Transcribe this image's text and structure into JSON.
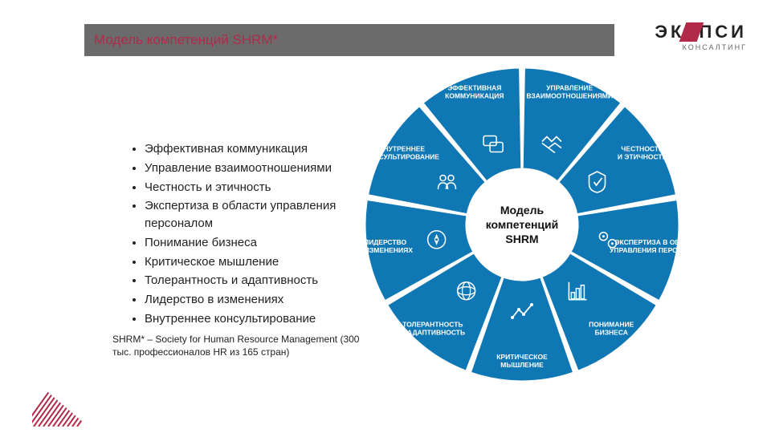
{
  "title": "Модель компетенций SHRM*",
  "logo": {
    "line1_a": "ЭК",
    "line1_b": "ПСИ",
    "sub": "КОНСАЛТИНГ"
  },
  "bullets": [
    "Эффективная коммуникация",
    "Управление взаимоотношениями",
    "Честность и этичность",
    "Экспертиза в области управления персоналом",
    "Понимание бизнеса",
    "Критическое мышление",
    "Толерантность и адаптивность",
    "Лидерство в изменениях",
    "Внутреннее консультирование"
  ],
  "footnote": "SHRM* – Society for Human Resource Management (300 тыс. профессионалов HR из 165 стран)",
  "wheel": {
    "center_lines": [
      "Модель",
      "компетенций",
      "SHRM"
    ],
    "inner_radius": 70,
    "outer_radius": 195,
    "gap_deg": 2,
    "background": "#ffffff",
    "segment_fill": "#0f77b3",
    "segment_stroke": "#ffffff",
    "label_color": "#ffffff",
    "label_fontsize": 8.5,
    "icon_color": "#ffffff",
    "segments": [
      {
        "label": [
          "ЭФФЕКТИВНАЯ",
          "КОММУНИКАЦИЯ"
        ],
        "icon": "chat"
      },
      {
        "label": [
          "УПРАВЛЕНИЕ",
          "ВЗАИМООТНОШЕНИЯМИ"
        ],
        "icon": "handshake"
      },
      {
        "label": [
          "ЧЕСТНОСТЬ",
          "И ЭТИЧНОСТЬ"
        ],
        "icon": "shield"
      },
      {
        "label": [
          "ЭКСПЕРТИЗА В ОБЛАСТИ",
          "УПРАВЛЕНИЯ ПЕРСОНАЛОМ"
        ],
        "icon": "gears"
      },
      {
        "label": [
          "ПОНИМАНИЕ",
          "БИЗНЕСА"
        ],
        "icon": "chart"
      },
      {
        "label": [
          "КРИТИЧЕСКОЕ",
          "МЫШЛЕНИЕ"
        ],
        "icon": "trend"
      },
      {
        "label": [
          "ТОЛЕРАНТНОСТЬ",
          "И АДАПТИВНОСТЬ"
        ],
        "icon": "globe"
      },
      {
        "label": [
          "ЛИДЕРСТВО",
          "В ИЗМЕНЕНИЯХ"
        ],
        "icon": "compass"
      },
      {
        "label": [
          "ВНУТРЕННЕЕ",
          "КОНСУЛЬТИРОВАНИЕ"
        ],
        "icon": "people"
      }
    ]
  },
  "hatch_color": "#b12a4a"
}
